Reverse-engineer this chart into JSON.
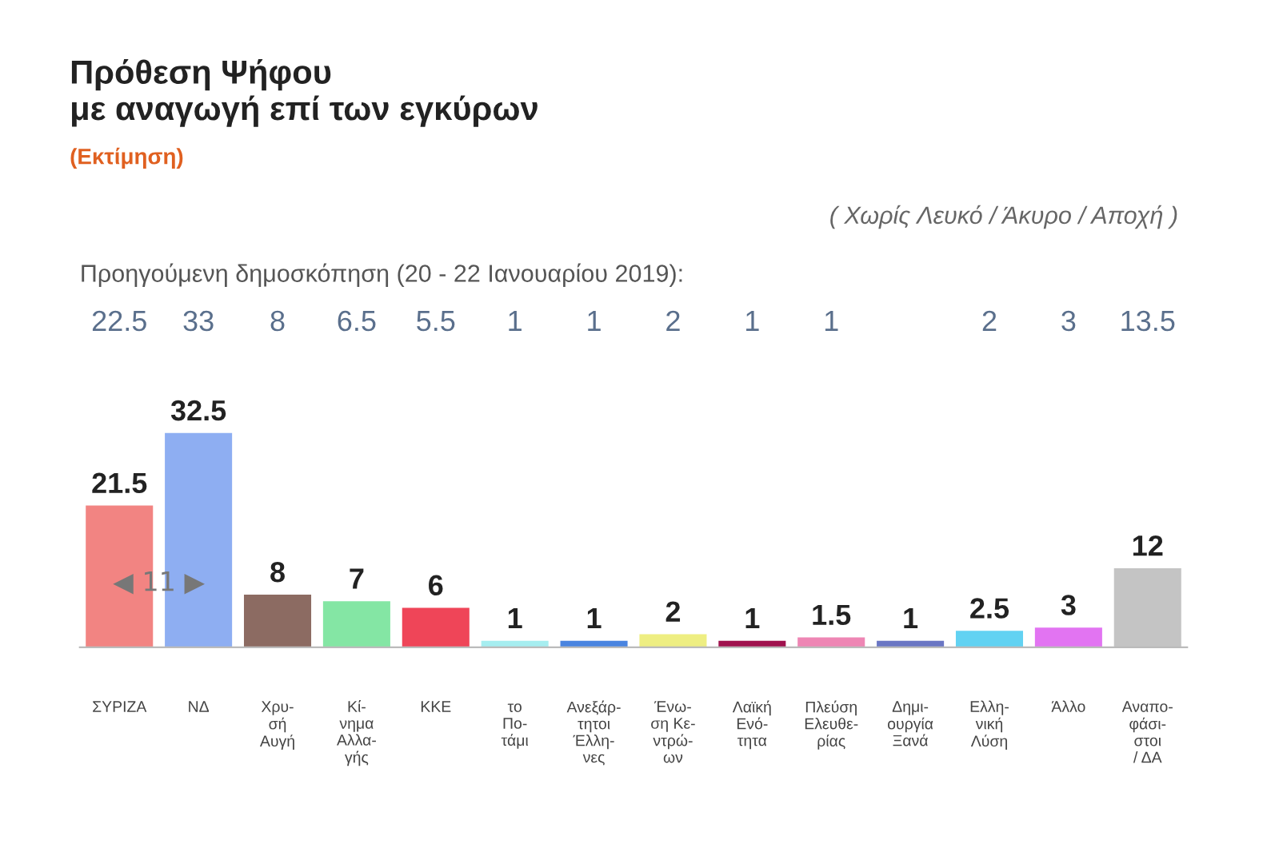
{
  "chart_data": {
    "type": "bar",
    "title": "Πρόθεση Ψήφου\nμε αναγωγή επί των εγκύρων",
    "subtitle": "(Εκτίμηση)",
    "categories": [
      "ΣΥΡΙΖΑ",
      "ΝΔ",
      "Χρυ-\nσή\nΑυγή",
      "Κί-\nνημα\nΑλλα-\nγής",
      "ΚΚΕ",
      "το\nΠο-\nτάμι",
      "Ανεξάρ-\nτητοι\nΈλλη-\nνες",
      "Ένω-\nση Κε-\nντρώ-\nων",
      "Λαϊκή\nΕνό-\nτητα",
      "Πλεύση\nΕλευθε-\nρίας",
      "Δημι-\nουργία\nΞανά",
      "Ελλη-\nνική\nΛύση",
      "Άλλο",
      "Αναπο-\nφάσι-\nστοι\n/ ΔΑ"
    ],
    "values": [
      21.5,
      32.5,
      8,
      7,
      6,
      1,
      1,
      2,
      1,
      1.5,
      1,
      2.5,
      3,
      12
    ],
    "colors": [
      "#f28482",
      "#8eaef2",
      "#8c6b62",
      "#84e6a4",
      "#ef4558",
      "#a6eef0",
      "#4a84e0",
      "#eeee82",
      "#a0124e",
      "#ee86b4",
      "#6a76c4",
      "#62d2f2",
      "#e274f2",
      "#c4c4c4"
    ],
    "data_labels": true,
    "annotations": [
      "( Χωρίς Λευκό / Άκυρο / Αποχή )",
      "Προηγούμενη δημοσκόπηση (20 - 22 Ιανουαρίου 2019):",
      "◀ 11 ▶",
      "22.5",
      "33",
      "8",
      "6.5",
      "5.5",
      "1",
      "1",
      "2",
      "1",
      "1",
      "2",
      "3",
      "13.5"
    ]
  }
}
